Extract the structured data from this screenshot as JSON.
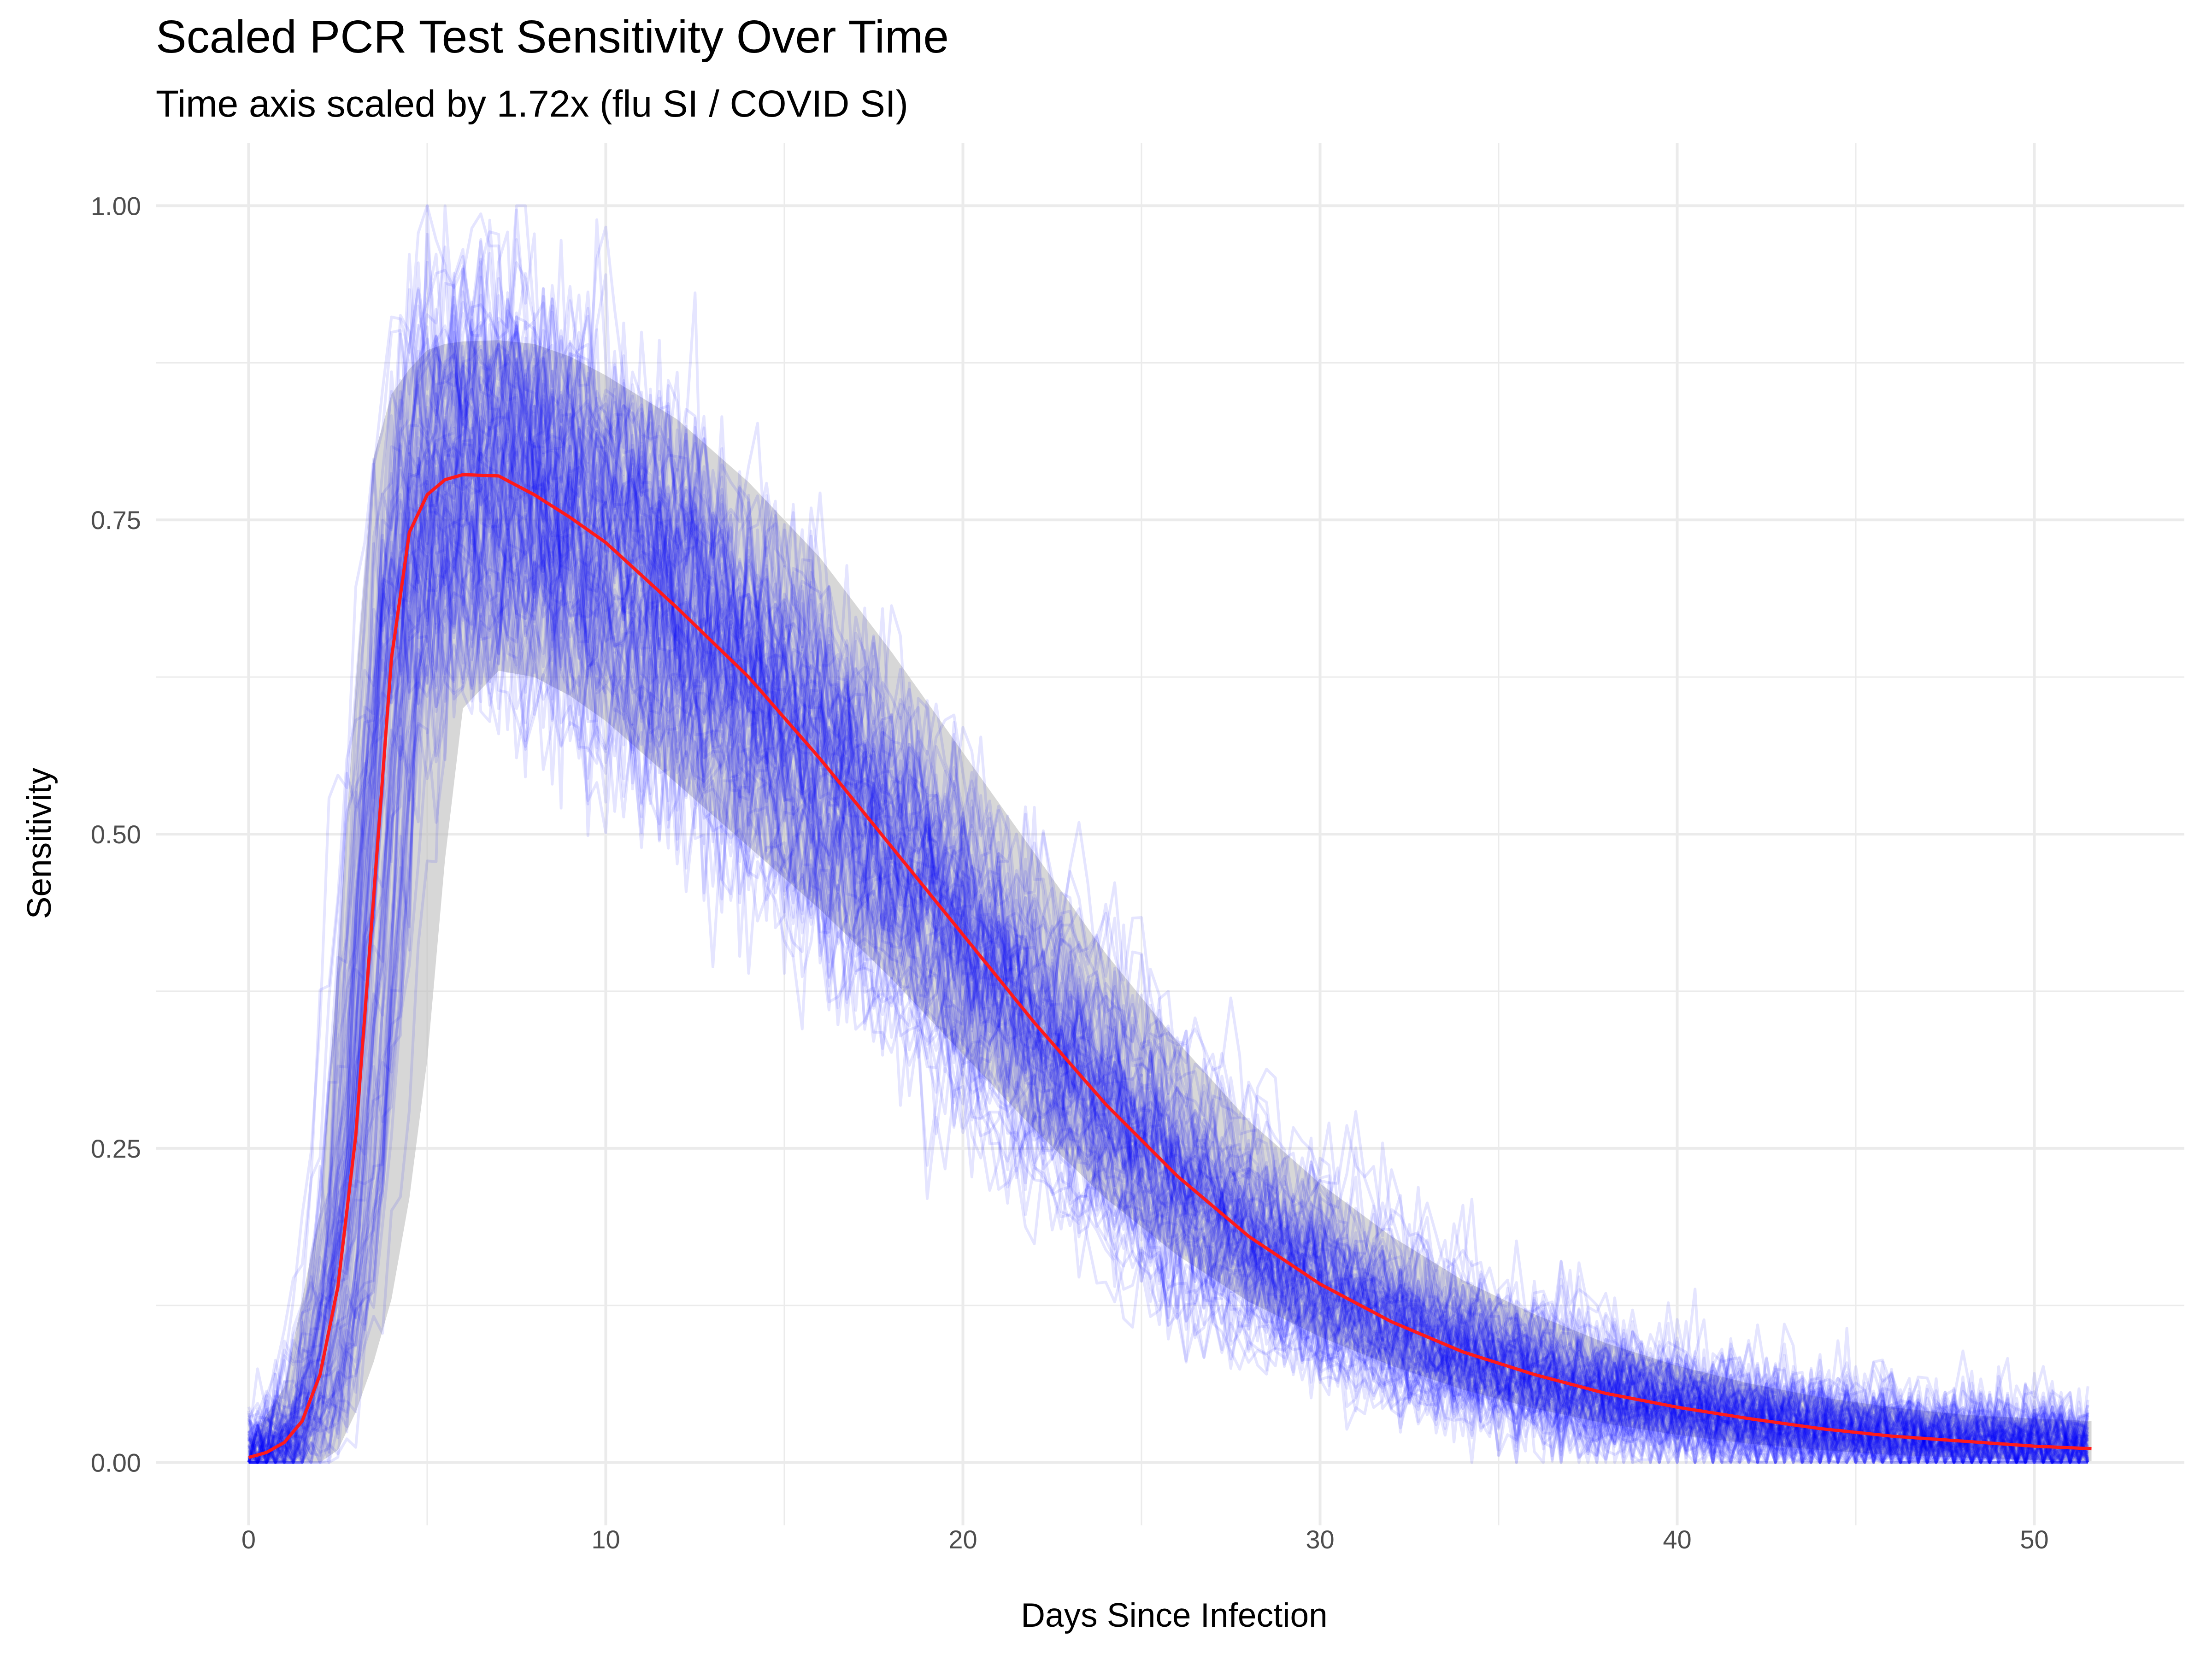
{
  "chart_data": {
    "type": "line",
    "title": "Scaled PCR Test Sensitivity Over Time",
    "subtitle": "Time axis scaled by 1.72x (flu SI / COVID SI)",
    "xlabel": "Days Since Infection",
    "ylabel": "Sensitivity",
    "xlim": [
      -2.6,
      54.2
    ],
    "ylim": [
      -0.05,
      1.05
    ],
    "x_ticks": [
      0,
      10,
      20,
      30,
      40,
      50
    ],
    "x_tick_labels": [
      "0",
      "10",
      "20",
      "30",
      "40",
      "50"
    ],
    "y_ticks": [
      0,
      0.25,
      0.5,
      0.75,
      1.0
    ],
    "y_tick_labels": [
      "0.00",
      "0.25",
      "0.50",
      "0.75",
      "1.00"
    ],
    "grid": true,
    "legend": "none",
    "colors": {
      "mean_line": "#ff1a1a",
      "samples": "#0000ff",
      "ribbon": "#bebebe",
      "grid": "#ebebeb"
    },
    "mean_curve": {
      "x": [
        0,
        0.5,
        1,
        1.5,
        2,
        2.5,
        3,
        3.5,
        4,
        4.5,
        5,
        5.5,
        6,
        7,
        8,
        9,
        10,
        12,
        14,
        16,
        18,
        20,
        22,
        24,
        26,
        28,
        30,
        32,
        34,
        36,
        38,
        40,
        42,
        44,
        46,
        48,
        50,
        51.6
      ],
      "y": [
        0.004,
        0.008,
        0.016,
        0.033,
        0.07,
        0.14,
        0.26,
        0.45,
        0.64,
        0.74,
        0.77,
        0.782,
        0.786,
        0.785,
        0.77,
        0.752,
        0.732,
        0.68,
        0.625,
        0.56,
        0.49,
        0.42,
        0.35,
        0.285,
        0.228,
        0.18,
        0.142,
        0.112,
        0.088,
        0.07,
        0.055,
        0.044,
        0.035,
        0.027,
        0.021,
        0.017,
        0.013,
        0.011
      ]
    },
    "ribbon": {
      "x": [
        0,
        1,
        2,
        2.5,
        3,
        3.5,
        4,
        4.5,
        5,
        5.5,
        6,
        7,
        8,
        9,
        10,
        12,
        14,
        16,
        18,
        20,
        22,
        24,
        26,
        28,
        30,
        32,
        34,
        36,
        38,
        40,
        42,
        44,
        46,
        48,
        50,
        51.6
      ],
      "upper": [
        0.015,
        0.06,
        0.2,
        0.4,
        0.62,
        0.8,
        0.85,
        0.87,
        0.885,
        0.89,
        0.892,
        0.893,
        0.89,
        0.88,
        0.865,
        0.83,
        0.78,
        0.72,
        0.645,
        0.565,
        0.485,
        0.405,
        0.335,
        0.272,
        0.222,
        0.18,
        0.145,
        0.118,
        0.095,
        0.077,
        0.063,
        0.052,
        0.044,
        0.038,
        0.035,
        0.033
      ],
      "lower": [
        0.0,
        0.0,
        0.0,
        0.01,
        0.04,
        0.08,
        0.13,
        0.21,
        0.32,
        0.48,
        0.6,
        0.63,
        0.625,
        0.61,
        0.59,
        0.54,
        0.49,
        0.44,
        0.385,
        0.325,
        0.265,
        0.21,
        0.165,
        0.128,
        0.1,
        0.077,
        0.058,
        0.043,
        0.031,
        0.022,
        0.015,
        0.01,
        0.006,
        0.004,
        0.002,
        0.001
      ]
    }
  }
}
